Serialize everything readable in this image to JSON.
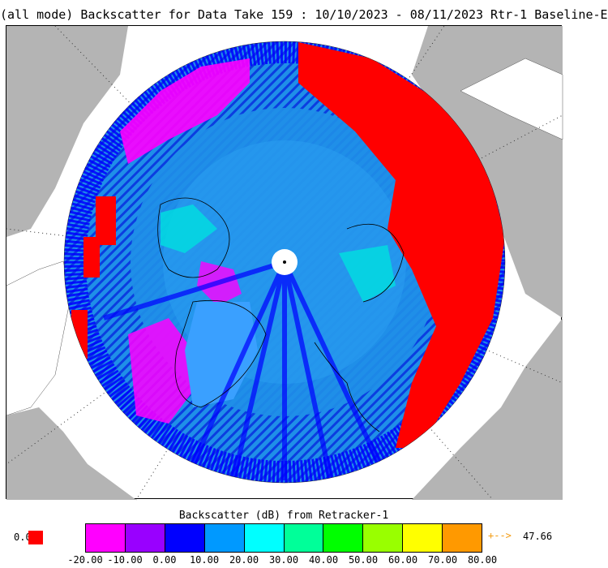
{
  "title": "(all mode) Backscatter for Data Take 159 : 10/10/2023 - 08/11/2023 Rtr-1 Baseline-E",
  "legend": {
    "title": "Backscatter (dB) from Retracker-1",
    "low_value": "0.0",
    "high_arrow": "+-->",
    "high_value": "47.66",
    "ticks": [
      "-20.00",
      "-10.00",
      "0.00",
      "10.00",
      "20.00",
      "30.00",
      "40.00",
      "50.00",
      "60.00",
      "70.00",
      "80.00"
    ],
    "colors": [
      "#ff00ff",
      "#9900ff",
      "#0000ff",
      "#0099ff",
      "#00ffff",
      "#00ff99",
      "#00ff00",
      "#99ff00",
      "#ffff00",
      "#ff9900"
    ]
  },
  "map": {
    "land_color": "#b4b4b4",
    "ocean_color": "#ffffff",
    "pole_hole_color": "#ffffff",
    "out_of_range_color": "#ff0000"
  }
}
